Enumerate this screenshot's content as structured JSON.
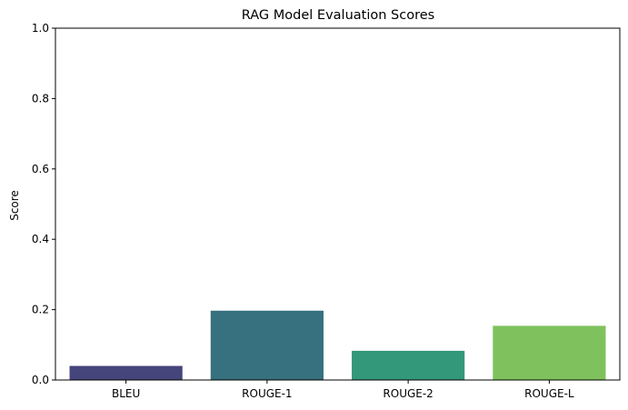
{
  "chart_data": {
    "type": "bar",
    "title": "RAG Model Evaluation Scores",
    "xlabel": "",
    "ylabel": "Score",
    "categories": [
      "BLEU",
      "ROUGE-1",
      "ROUGE-2",
      "ROUGE-L"
    ],
    "values": [
      0.04,
      0.197,
      0.083,
      0.154
    ],
    "colors": [
      "#46457b",
      "#37707f",
      "#33987a",
      "#7fc25d"
    ],
    "ylim": [
      0,
      1.0
    ],
    "yticks": [
      "0.0",
      "0.2",
      "0.4",
      "0.6",
      "0.8",
      "1.0"
    ],
    "grid": false,
    "legend": false
  }
}
